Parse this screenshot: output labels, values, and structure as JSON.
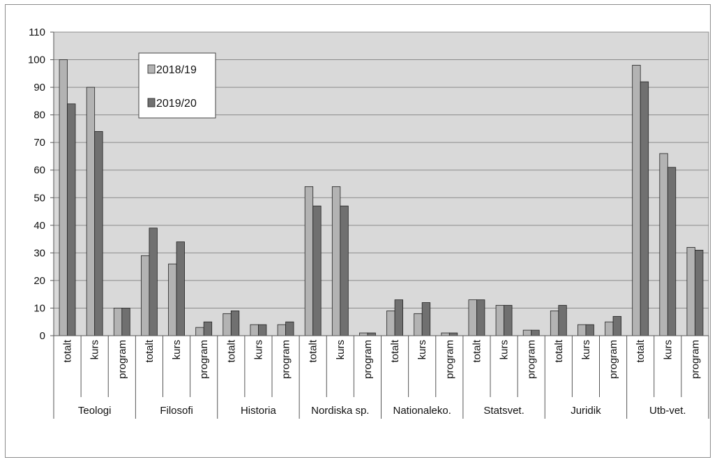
{
  "chart_data": {
    "type": "bar",
    "title": "",
    "xlabel": "",
    "ylabel": "",
    "ylim": [
      0,
      110
    ],
    "yticks": [
      0,
      10,
      20,
      30,
      40,
      50,
      60,
      70,
      80,
      90,
      100,
      110
    ],
    "grid": true,
    "legend_position": "top-left",
    "groups": [
      "Teologi",
      "Filosofi",
      "Historia",
      "Nordiska sp.",
      "Nationaleko.",
      "Statsvet.",
      "Juridik",
      "Utb-vet."
    ],
    "subcategories": [
      "totalt",
      "kurs",
      "program"
    ],
    "series": [
      {
        "name": "2018/19",
        "color": "#b3b3b3",
        "values": [
          100,
          90,
          10,
          29,
          26,
          3,
          8,
          4,
          4,
          54,
          54,
          1,
          9,
          8,
          1,
          13,
          11,
          2,
          9,
          4,
          5,
          98,
          66,
          32
        ]
      },
      {
        "name": "2019/20",
        "color": "#707070",
        "values": [
          84,
          74,
          10,
          39,
          34,
          5,
          9,
          4,
          5,
          47,
          47,
          1,
          13,
          12,
          1,
          13,
          11,
          2,
          11,
          4,
          7,
          92,
          61,
          31
        ]
      }
    ],
    "plot_background": "#d9d9d9"
  }
}
